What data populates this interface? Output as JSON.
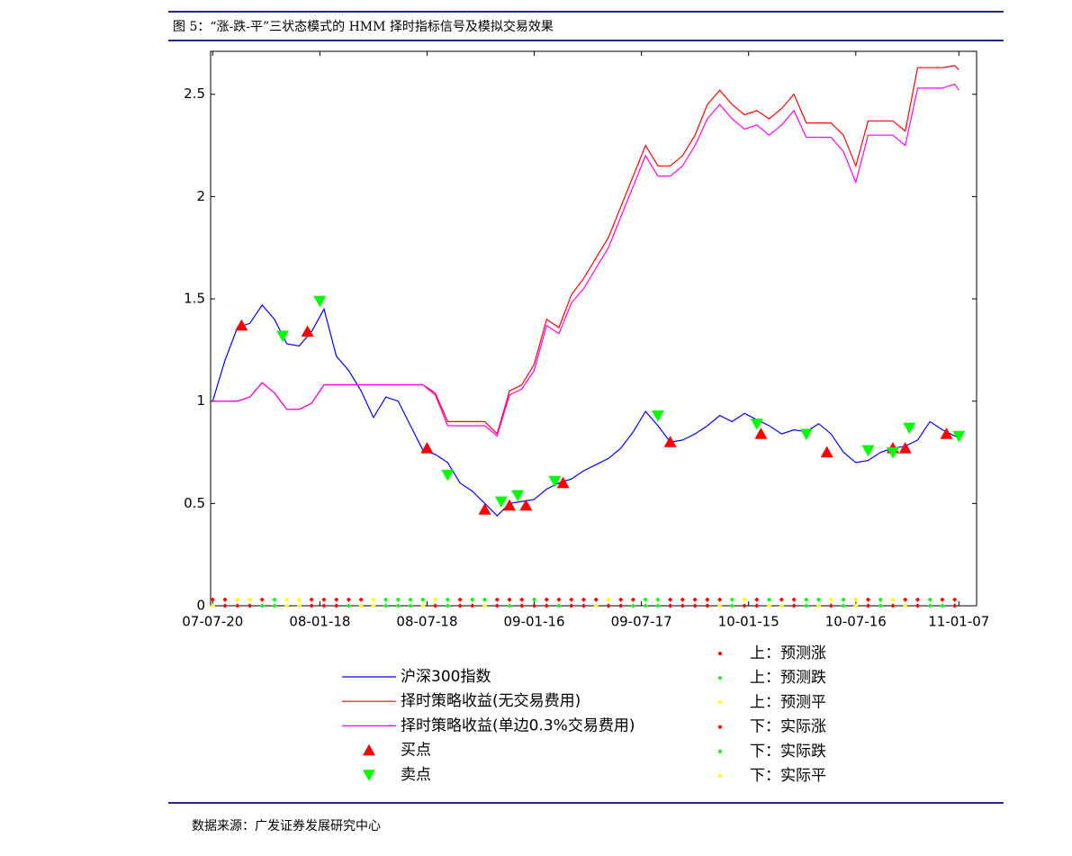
{
  "chart_data": {
    "type": "line",
    "title": "图 5：“涨-跌-平”三状态模式的 HMM 择时指标信号及模拟交易效果",
    "source": "数据来源：广发证券发展研究中心",
    "xlim": [
      -0.5,
      185.3
    ],
    "ylim": [
      0,
      2.71
    ],
    "xticks": [
      {
        "value": 0,
        "label": "07-07-20"
      },
      {
        "value": 26,
        "label": "08-01-18"
      },
      {
        "value": 52,
        "label": "08-07-18"
      },
      {
        "value": 78,
        "label": "09-01-16"
      },
      {
        "value": 104,
        "label": "09-07-17"
      },
      {
        "value": 130,
        "label": "10-01-15"
      },
      {
        "value": 156,
        "label": "10-07-16"
      },
      {
        "value": 181,
        "label": "11-01-07"
      }
    ],
    "yticks": [
      0,
      0.5,
      1,
      1.5,
      2,
      2.5
    ],
    "x": [
      0,
      3,
      6,
      9,
      12,
      15,
      18,
      21,
      24,
      27,
      30,
      33,
      36,
      39,
      42,
      45,
      48,
      51,
      54,
      57,
      60,
      63,
      66,
      69,
      72,
      75,
      78,
      81,
      84,
      87,
      90,
      93,
      96,
      99,
      102,
      105,
      108,
      111,
      114,
      117,
      120,
      123,
      126,
      129,
      132,
      135,
      138,
      141,
      144,
      147,
      150,
      153,
      156,
      159,
      162,
      165,
      168,
      171,
      174,
      177,
      180,
      181
    ],
    "series": [
      {
        "name": "沪深300指数",
        "type": "line",
        "color": "#0000ff",
        "values": [
          1.0,
          1.2,
          1.36,
          1.38,
          1.47,
          1.4,
          1.28,
          1.27,
          1.34,
          1.45,
          1.22,
          1.15,
          1.05,
          0.92,
          1.02,
          1.0,
          0.88,
          0.76,
          0.74,
          0.7,
          0.6,
          0.56,
          0.5,
          0.44,
          0.5,
          0.51,
          0.52,
          0.57,
          0.6,
          0.62,
          0.66,
          0.69,
          0.72,
          0.77,
          0.85,
          0.95,
          0.88,
          0.8,
          0.81,
          0.84,
          0.88,
          0.93,
          0.9,
          0.94,
          0.91,
          0.88,
          0.84,
          0.86,
          0.85,
          0.89,
          0.84,
          0.75,
          0.7,
          0.71,
          0.75,
          0.77,
          0.78,
          0.81,
          0.9,
          0.86,
          0.83,
          0.82
        ]
      },
      {
        "name": "择时策略收益(无交易费用)",
        "type": "line",
        "color": "#ff0000",
        "values": [
          1.0,
          1.0,
          1.0,
          1.02,
          1.09,
          1.04,
          0.96,
          0.96,
          0.99,
          1.08,
          1.08,
          1.08,
          1.08,
          1.08,
          1.08,
          1.08,
          1.08,
          1.08,
          1.04,
          0.9,
          0.9,
          0.9,
          0.9,
          0.84,
          1.05,
          1.08,
          1.18,
          1.4,
          1.36,
          1.52,
          1.6,
          1.7,
          1.8,
          1.95,
          2.1,
          2.25,
          2.15,
          2.15,
          2.2,
          2.3,
          2.45,
          2.52,
          2.45,
          2.4,
          2.42,
          2.38,
          2.43,
          2.5,
          2.36,
          2.36,
          2.36,
          2.3,
          2.15,
          2.37,
          2.37,
          2.37,
          2.32,
          2.63,
          2.63,
          2.63,
          2.64,
          2.62
        ]
      },
      {
        "name": "择时策略收益(单边0.3%交易费用)",
        "type": "line",
        "color": "#ff00ff",
        "values": [
          1.0,
          1.0,
          1.0,
          1.02,
          1.09,
          1.04,
          0.96,
          0.96,
          0.99,
          1.08,
          1.08,
          1.08,
          1.08,
          1.08,
          1.08,
          1.08,
          1.08,
          1.08,
          1.03,
          0.88,
          0.88,
          0.88,
          0.88,
          0.83,
          1.03,
          1.06,
          1.15,
          1.37,
          1.33,
          1.48,
          1.55,
          1.65,
          1.75,
          1.9,
          2.05,
          2.2,
          2.1,
          2.1,
          2.15,
          2.25,
          2.38,
          2.45,
          2.38,
          2.33,
          2.35,
          2.3,
          2.35,
          2.42,
          2.29,
          2.29,
          2.29,
          2.22,
          2.07,
          2.3,
          2.3,
          2.3,
          2.25,
          2.53,
          2.53,
          2.53,
          2.55,
          2.52
        ]
      },
      {
        "name": "买点",
        "type": "scatter",
        "marker": "triangle-up",
        "color": "#ff0000",
        "x": [
          7,
          23,
          52,
          66,
          72,
          76,
          85,
          111,
          133,
          149,
          165,
          168,
          178
        ],
        "values": [
          1.37,
          1.34,
          0.77,
          0.47,
          0.49,
          0.49,
          0.6,
          0.8,
          0.84,
          0.75,
          0.77,
          0.77,
          0.84
        ]
      },
      {
        "name": "卖点",
        "type": "scatter",
        "marker": "triangle-down",
        "color": "#00ff00",
        "x": [
          17,
          26,
          57,
          70,
          74,
          83,
          108,
          132,
          144,
          159,
          165,
          169,
          181
        ],
        "values": [
          1.32,
          1.49,
          0.64,
          0.51,
          0.54,
          0.61,
          0.93,
          0.89,
          0.84,
          0.76,
          0.75,
          0.87,
          0.83
        ]
      },
      {
        "name": "上：预测涨",
        "type": "scatter",
        "marker": "diamond",
        "color": "#ff0000",
        "x": [
          0,
          3,
          12,
          24,
          27,
          30,
          33,
          36,
          60,
          69,
          72,
          75,
          81,
          84,
          87,
          90,
          93,
          99,
          102,
          111,
          114,
          117,
          120,
          123,
          132,
          138,
          141,
          159,
          168,
          171,
          177,
          180
        ],
        "values": [
          0.03,
          0.03,
          0.03,
          0.03,
          0.03,
          0.03,
          0.03,
          0.03,
          0.03,
          0.03,
          0.03,
          0.03,
          0.03,
          0.03,
          0.03,
          0.03,
          0.03,
          0.03,
          0.03,
          0.03,
          0.03,
          0.03,
          0.03,
          0.03,
          0.03,
          0.03,
          0.03,
          0.03,
          0.03,
          0.03,
          0.03,
          0.03
        ]
      },
      {
        "name": "上：预测跌",
        "type": "scatter",
        "marker": "diamond",
        "color": "#00ff00",
        "x": [
          15,
          42,
          45,
          48,
          51,
          57,
          63,
          66,
          78,
          105,
          108,
          126,
          135,
          144,
          147,
          153,
          162,
          174
        ],
        "values": [
          0.03,
          0.03,
          0.03,
          0.03,
          0.03,
          0.03,
          0.03,
          0.03,
          0.03,
          0.03,
          0.03,
          0.03,
          0.03,
          0.03,
          0.03,
          0.03,
          0.03,
          0.03
        ]
      },
      {
        "name": "上：预测平",
        "type": "scatter",
        "marker": "diamond",
        "color": "#ffff00",
        "x": [
          6,
          9,
          18,
          21,
          39,
          54,
          96,
          129,
          150,
          156,
          165
        ],
        "values": [
          0.03,
          0.03,
          0.03,
          0.03,
          0.03,
          0.03,
          0.03,
          0.03,
          0.03,
          0.03,
          0.03
        ]
      },
      {
        "name": "下：实际涨",
        "type": "scatter",
        "marker": "diamond",
        "color": "#ff0000",
        "x": [
          3,
          6,
          9,
          24,
          27,
          30,
          54,
          60,
          63,
          69,
          75,
          78,
          81,
          87,
          90,
          96,
          99,
          111,
          114,
          117,
          120,
          129,
          132,
          141,
          150,
          159,
          165,
          171,
          180
        ],
        "values": [
          0,
          0,
          0,
          0,
          0,
          0,
          0,
          0,
          0,
          0,
          0,
          0,
          0,
          0,
          0,
          0,
          0,
          0,
          0,
          0,
          0,
          0,
          0,
          0,
          0,
          0,
          0,
          0,
          0
        ]
      },
      {
        "name": "下：实际跌",
        "type": "scatter",
        "marker": "diamond",
        "color": "#00ff00",
        "x": [
          12,
          15,
          33,
          42,
          45,
          48,
          57,
          72,
          84,
          102,
          105,
          108,
          126,
          144,
          153,
          162,
          174,
          177
        ],
        "values": [
          0,
          0,
          0,
          0,
          0,
          0,
          0,
          0,
          0,
          0,
          0,
          0,
          0,
          0,
          0,
          0,
          0,
          0
        ]
      },
      {
        "name": "下：实际平",
        "type": "scatter",
        "marker": "diamond",
        "color": "#ffff00",
        "x": [
          0,
          18,
          21,
          36,
          39,
          51,
          66,
          93,
          123,
          135,
          138,
          147,
          156,
          168
        ],
        "values": [
          0,
          0,
          0,
          0,
          0,
          0,
          0,
          0,
          0,
          0,
          0,
          0,
          0,
          0
        ]
      }
    ]
  }
}
